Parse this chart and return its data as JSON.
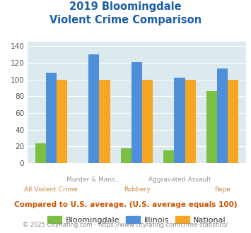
{
  "title_line1": "2019 Bloomingdale",
  "title_line2": "Violent Crime Comparison",
  "top_labels": [
    "",
    "Murder & Mans...",
    "",
    "Aggravated Assault",
    ""
  ],
  "bot_labels": [
    "All Violent Crime",
    "",
    "Robbery",
    "",
    "Rape"
  ],
  "bloomingdale": [
    24,
    0,
    18,
    15,
    86
  ],
  "illinois": [
    108,
    130,
    121,
    102,
    113
  ],
  "national": [
    100,
    100,
    100,
    100,
    100
  ],
  "colors": {
    "bloomingdale": "#7bc043",
    "illinois": "#4d8fdb",
    "national": "#f5a623"
  },
  "ylim": [
    0,
    145
  ],
  "yticks": [
    0,
    20,
    40,
    60,
    80,
    100,
    120,
    140
  ],
  "bg_color": "#dce9ee",
  "title_color": "#1a5fa8",
  "label_color_top": "#999999",
  "label_color_bot": "#cc8844",
  "footnote1": "Compared to U.S. average. (U.S. average equals 100)",
  "footnote2": "© 2025 CityRating.com - https://www.cityrating.com/crime-statistics/",
  "footnote1_color": "#cc5500",
  "footnote2_color": "#888888",
  "legend_labels": [
    "Bloomingdale",
    "Illinois",
    "National"
  ],
  "bar_width": 0.25
}
